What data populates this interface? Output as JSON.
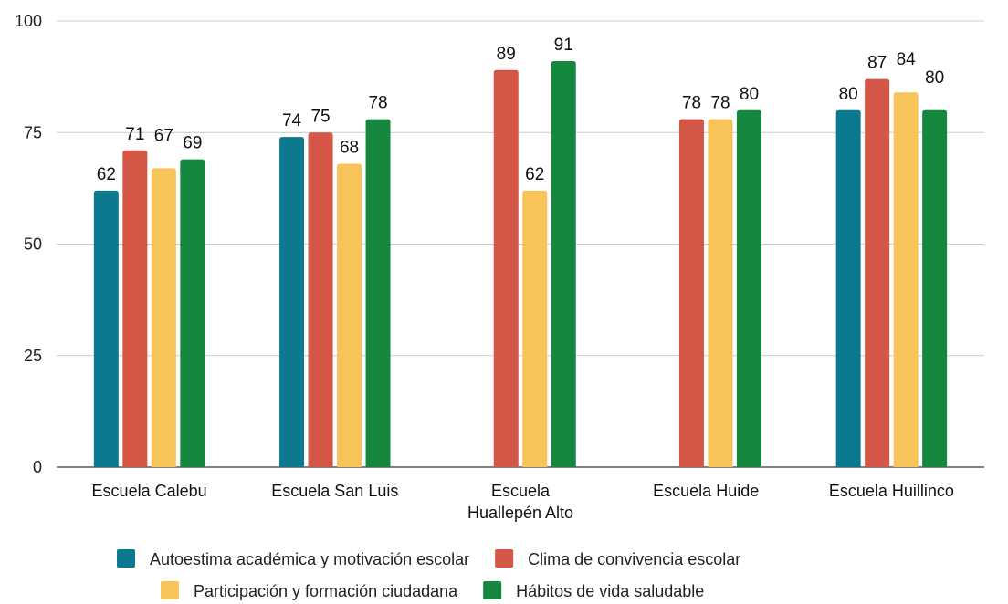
{
  "chart_data": {
    "type": "bar",
    "categories": [
      [
        "Escuela Calebu"
      ],
      [
        "Escuela San Luis"
      ],
      [
        "Escuela",
        "Huallepén Alto"
      ],
      [
        "Escuela Huide"
      ],
      [
        "Escuela Huillinco"
      ]
    ],
    "series": [
      {
        "name": "Autoestima académica y motivación escolar",
        "color": "#0b7a8f",
        "values": [
          62,
          74,
          null,
          null,
          80
        ]
      },
      {
        "name": "Clima de convivencia escolar",
        "color": "#d45646",
        "values": [
          71,
          75,
          89,
          78,
          87
        ]
      },
      {
        "name": "Participación y formación ciudadana",
        "color": "#f8c45a",
        "values": [
          67,
          68,
          62,
          78,
          84
        ]
      },
      {
        "name": "Hábitos de vida saludable",
        "color": "#15873f",
        "values": [
          69,
          78,
          91,
          80,
          80
        ]
      }
    ],
    "ylim": [
      0,
      100
    ],
    "yticks": [
      0,
      25,
      50,
      75,
      100
    ],
    "grid": true,
    "legend_position": "bottom",
    "title": "",
    "xlabel": "",
    "ylabel": ""
  }
}
